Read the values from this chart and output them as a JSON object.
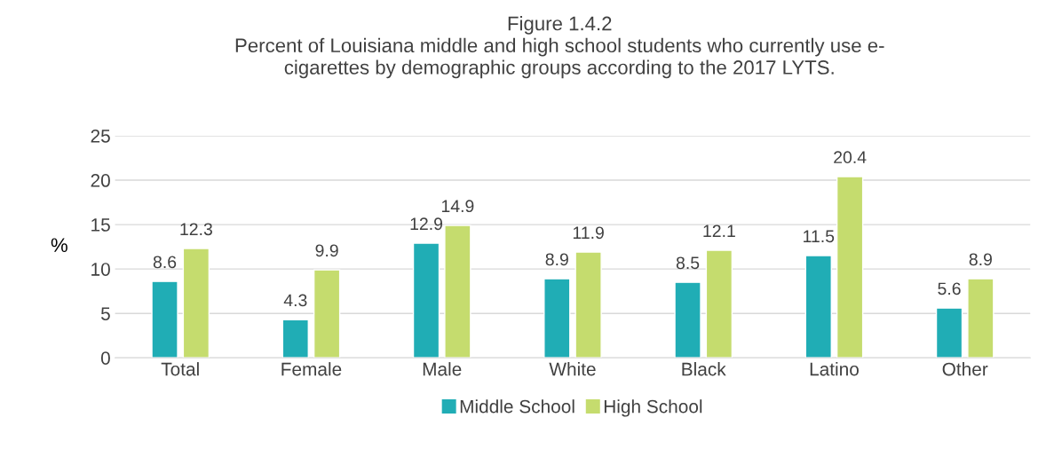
{
  "chart_data": {
    "type": "bar",
    "title": "Figure 1.4.2",
    "subtitle": "Percent of Louisiana middle and high school students who currently use e-\ncigarettes by demographic groups according to the 2017 LYTS.",
    "ylabel": "%",
    "categories": [
      "Total",
      "Female",
      "Male",
      "White",
      "Black",
      "Latino",
      "Other"
    ],
    "series": [
      {
        "name": "Middle School",
        "color": "#20adb5",
        "values": [
          8.6,
          4.3,
          12.9,
          8.9,
          8.5,
          11.5,
          5.6
        ]
      },
      {
        "name": "High School",
        "color": "#c5dc6e",
        "values": [
          12.3,
          9.9,
          14.9,
          11.9,
          12.1,
          20.4,
          8.9
        ]
      }
    ],
    "ylim": [
      0,
      25
    ],
    "yticks": [
      0,
      5,
      10,
      15,
      20,
      25
    ],
    "grid": "y",
    "legend": "bottom",
    "data_labels": true
  }
}
